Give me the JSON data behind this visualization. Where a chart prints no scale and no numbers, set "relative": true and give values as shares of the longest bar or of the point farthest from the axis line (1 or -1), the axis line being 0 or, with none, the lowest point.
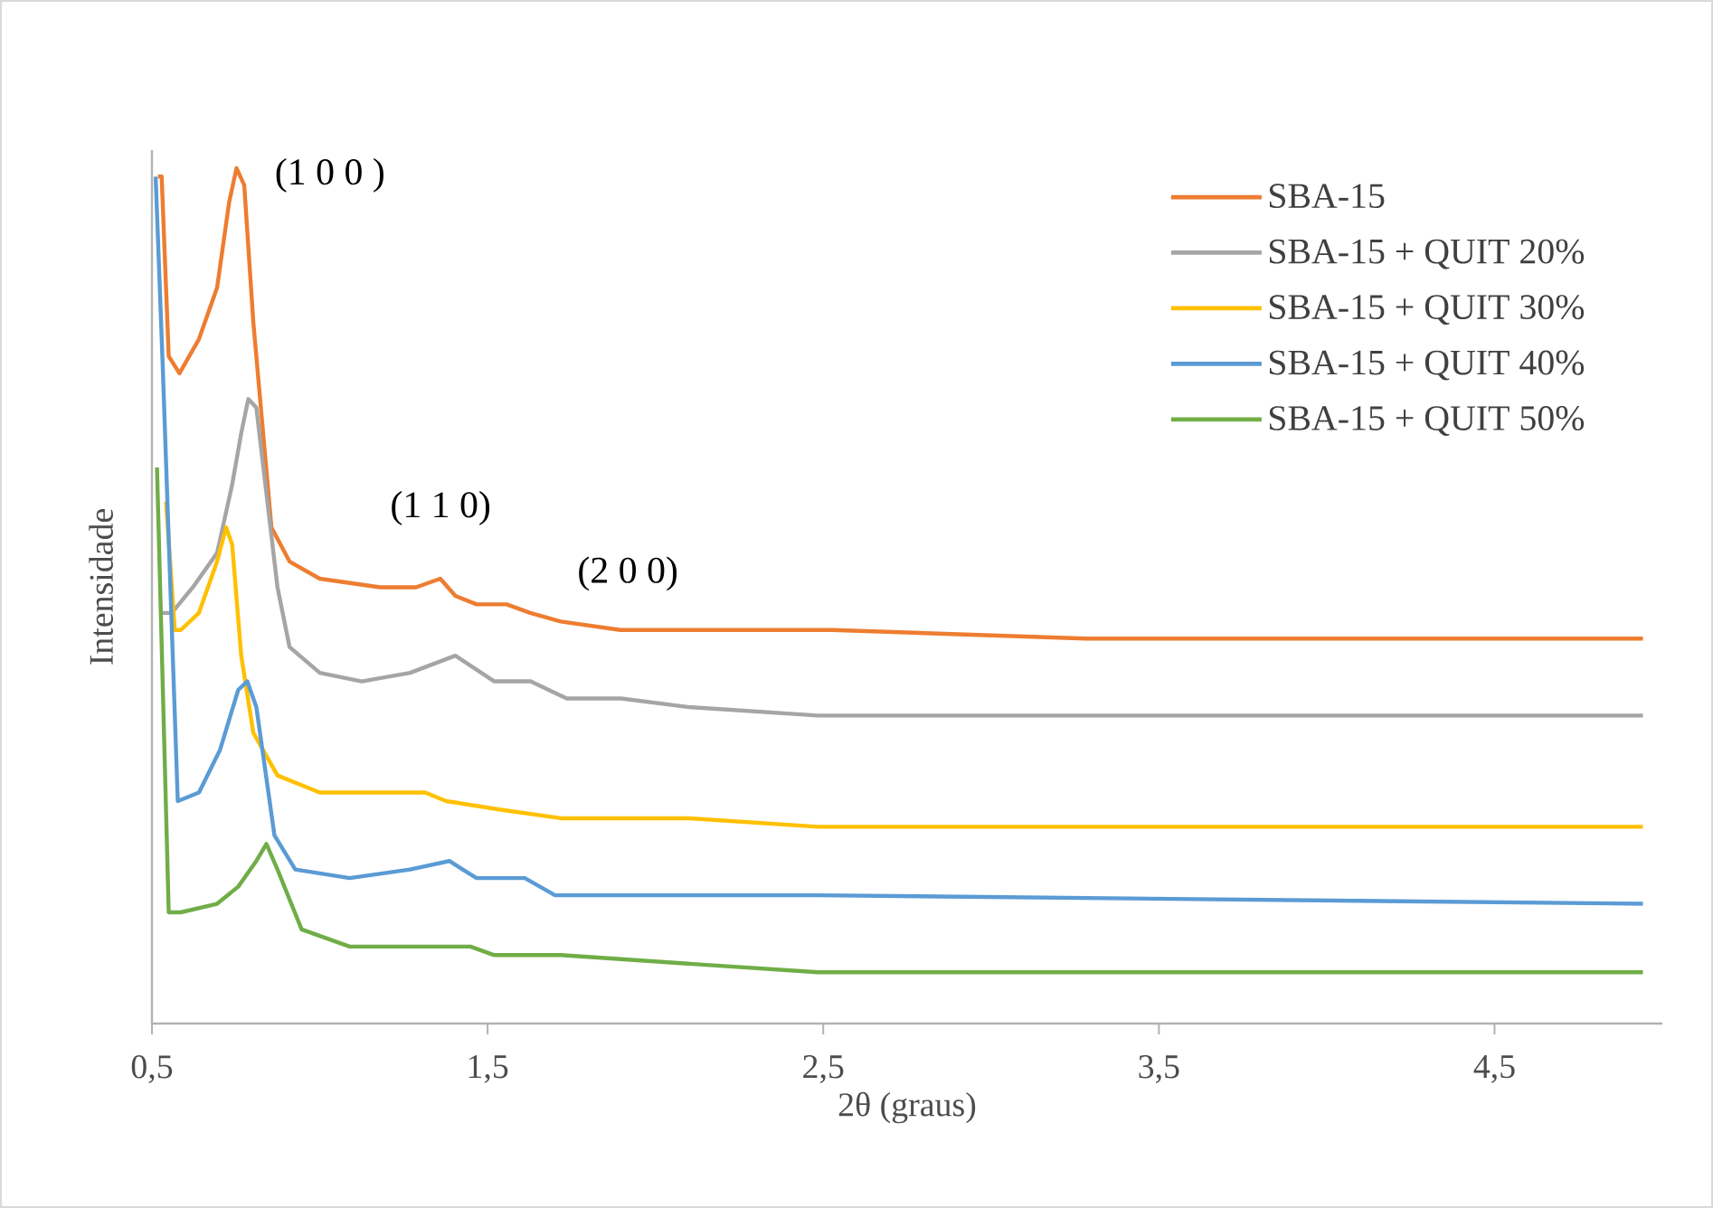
{
  "chart_data": {
    "type": "line",
    "relative": true,
    "xlabel": "2θ (graus)",
    "ylabel": "Intensidade",
    "xlim": [
      0.5,
      5.0
    ],
    "xticks": [
      {
        "value": 0.5,
        "label": "0,5"
      },
      {
        "value": 1.5,
        "label": "1,5"
      },
      {
        "value": 2.5,
        "label": "2,5"
      },
      {
        "value": 3.5,
        "label": "3,5"
      },
      {
        "value": 4.5,
        "label": "4,5"
      }
    ],
    "legend": "top right",
    "grid": false,
    "annotations": [
      {
        "text": "(1 0 0 )",
        "x": 0.75,
        "y": 1.0
      },
      {
        "text": "(1 1 0)",
        "x": 1.36,
        "y": 0.52
      },
      {
        "text": "(2 0 0)",
        "x": 1.63,
        "y": 0.49
      }
    ],
    "series": [
      {
        "name": "SBA-15",
        "color": "#ed7d31",
        "x": [
          0.518,
          0.529,
          0.55,
          0.582,
          0.64,
          0.694,
          0.73,
          0.752,
          0.775,
          0.802,
          0.856,
          0.91,
          1.0,
          1.179,
          1.287,
          1.359,
          1.404,
          1.467,
          1.557,
          1.627,
          1.718,
          1.896,
          2.096,
          2.527,
          3.282,
          4.942
        ],
        "values": [
          0.99,
          0.99,
          0.78,
          0.76,
          0.8,
          0.86,
          0.96,
          1.0,
          0.98,
          0.82,
          0.58,
          0.54,
          0.52,
          0.51,
          0.51,
          0.52,
          0.5,
          0.49,
          0.49,
          0.48,
          0.47,
          0.46,
          0.46,
          0.46,
          0.45,
          0.45
        ]
      },
      {
        "name": "SBA-15 + QUIT 20%",
        "color": "#a5a5a5",
        "x": [
          0.523,
          0.559,
          0.622,
          0.694,
          0.739,
          0.766,
          0.787,
          0.811,
          0.838,
          0.874,
          0.91,
          1.0,
          1.125,
          1.269,
          1.404,
          1.52,
          1.628,
          1.736,
          1.898,
          2.096,
          2.484,
          4.942
        ],
        "values": [
          0.48,
          0.48,
          0.51,
          0.55,
          0.63,
          0.69,
          0.73,
          0.72,
          0.63,
          0.51,
          0.44,
          0.41,
          0.4,
          0.41,
          0.43,
          0.4,
          0.4,
          0.38,
          0.38,
          0.37,
          0.36,
          0.36
        ]
      },
      {
        "name": "SBA-15 + QUIT 30%",
        "color": "#ffc000",
        "x": [
          0.542,
          0.568,
          0.586,
          0.64,
          0.694,
          0.721,
          0.739,
          0.766,
          0.802,
          0.874,
          1.0,
          1.179,
          1.314,
          1.377,
          1.539,
          1.718,
          2.096,
          2.484,
          4.942
        ],
        "values": [
          0.61,
          0.46,
          0.46,
          0.48,
          0.54,
          0.58,
          0.56,
          0.43,
          0.34,
          0.29,
          0.27,
          0.27,
          0.27,
          0.26,
          0.25,
          0.24,
          0.24,
          0.23,
          0.23
        ]
      },
      {
        "name": "SBA-15 + QUIT 40%",
        "color": "#5b9bd5",
        "x": [
          0.511,
          0.532,
          0.577,
          0.64,
          0.703,
          0.757,
          0.784,
          0.811,
          0.865,
          0.927,
          1.089,
          1.269,
          1.386,
          1.467,
          1.611,
          1.701,
          2.096,
          2.484,
          4.942
        ],
        "values": [
          0.99,
          0.77,
          0.26,
          0.27,
          0.32,
          0.39,
          0.4,
          0.37,
          0.22,
          0.18,
          0.17,
          0.18,
          0.19,
          0.17,
          0.17,
          0.15,
          0.15,
          0.15,
          0.14
        ]
      },
      {
        "name": "SBA-15 + QUIT 50%",
        "color": "#70ad47",
        "x": [
          0.515,
          0.55,
          0.586,
          0.694,
          0.757,
          0.811,
          0.841,
          0.874,
          0.946,
          1.089,
          1.359,
          1.449,
          1.52,
          1.718,
          2.096,
          2.484,
          4.942
        ],
        "values": [
          0.65,
          0.13,
          0.13,
          0.14,
          0.16,
          0.19,
          0.21,
          0.18,
          0.11,
          0.09,
          0.09,
          0.09,
          0.08,
          0.08,
          0.07,
          0.06,
          0.06
        ]
      }
    ]
  }
}
